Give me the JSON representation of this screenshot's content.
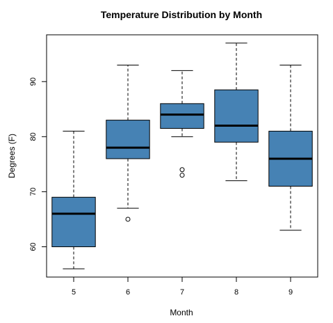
{
  "chart_data": {
    "type": "boxplot",
    "title": "Temperature Distribution by Month",
    "xlabel": "Month",
    "ylabel": "Degrees (F)",
    "categories": [
      "5",
      "6",
      "7",
      "8",
      "9"
    ],
    "ylim": [
      54.5,
      98.5
    ],
    "yticks": [
      60,
      70,
      80,
      90
    ],
    "box_color": "#4682B4",
    "grid": false,
    "boxes": [
      {
        "min": 56,
        "q1": 60,
        "median": 66,
        "q3": 69,
        "max": 81,
        "outliers": []
      },
      {
        "min": 67,
        "q1": 76,
        "median": 78,
        "q3": 83,
        "max": 93,
        "outliers": [
          65
        ]
      },
      {
        "min": 80,
        "q1": 81.5,
        "median": 84,
        "q3": 86,
        "max": 92,
        "outliers": [
          73,
          74
        ]
      },
      {
        "min": 72,
        "q1": 79,
        "median": 82,
        "q3": 88.5,
        "max": 97,
        "outliers": []
      },
      {
        "min": 63,
        "q1": 71,
        "median": 76,
        "q3": 81,
        "max": 93,
        "outliers": []
      }
    ]
  }
}
